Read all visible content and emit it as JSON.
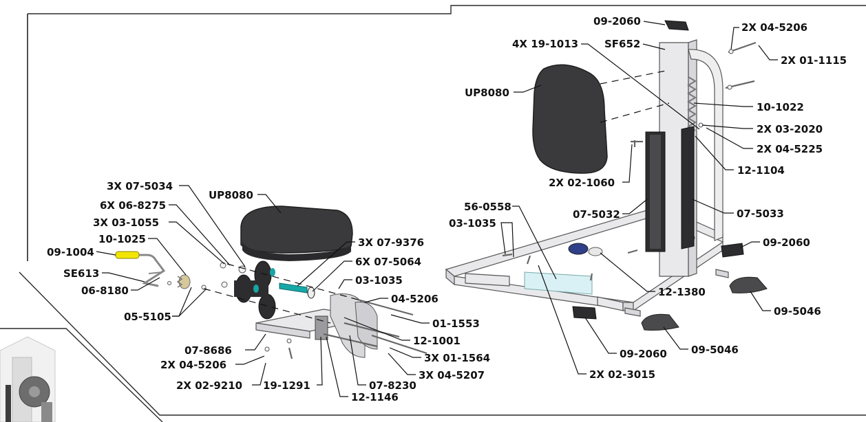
{
  "callouts": [
    "09-2060",
    "2X 04-5206",
    "4X 19-1013",
    "SF652",
    "2X 01-1115",
    "UP8080",
    "10-1022",
    "2X 03-2020",
    "2X 04-5225",
    "12-1104",
    "2X 02-1060",
    "07-5032",
    "07-5033",
    "56-0558",
    "03-1035",
    "09-2060",
    "12-1380",
    "09-5046",
    "3X 07-5034",
    "UP8080",
    "6X 06-8275",
    "3X 03-1055",
    "10-1025",
    "3X 07-9376",
    "09-1004",
    "6X 07-5064",
    "SE613",
    "03-1035",
    "06-8180",
    "04-5206",
    "05-5105",
    "01-1553",
    "12-1001",
    "07-8686",
    "3X 01-1564",
    "2X 04-5206",
    "3X 04-5207",
    "2X 02-9210",
    "19-1291",
    "07-8230",
    "12-1146",
    "09-2060",
    "09-5046",
    "2X 02-3015"
  ],
  "colors": {
    "pad": "#3a3a3c",
    "frame_steel": "#e9e9ec",
    "handle_grip": "#f2e600",
    "line": "#111111"
  }
}
